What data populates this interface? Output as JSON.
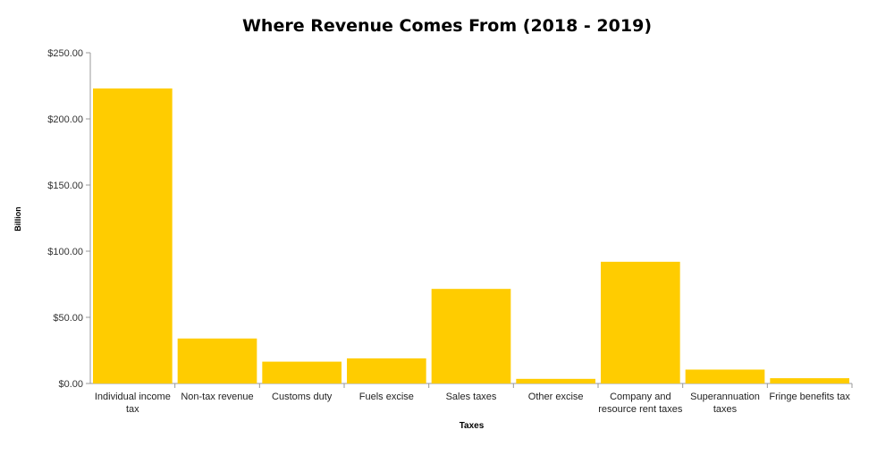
{
  "chart_data": {
    "type": "bar",
    "title": "Where Revenue Comes From (2018 - 2019)",
    "xlabel": "Taxes",
    "ylabel": "Billion",
    "ylim": [
      0,
      250
    ],
    "yticks": [
      "$0.00",
      "$50.00",
      "$100.00",
      "$150.00",
      "$200.00",
      "$250.00"
    ],
    "ytick_values": [
      0,
      50,
      100,
      150,
      200,
      250
    ],
    "categories": [
      "Individual income tax",
      "Non-tax revenue",
      "Customs duty",
      "Fuels excise",
      "Sales taxes",
      "Other excise",
      "Company and resource rent taxes",
      "Superannuation taxes",
      "Fringe benefits tax"
    ],
    "category_lines": [
      [
        "Individual income",
        "tax"
      ],
      [
        "Non-tax revenue"
      ],
      [
        "Customs duty"
      ],
      [
        "Fuels excise"
      ],
      [
        "Sales taxes"
      ],
      [
        "Other excise"
      ],
      [
        "Company and",
        "resource rent taxes"
      ],
      [
        "Superannuation",
        "taxes"
      ],
      [
        "Fringe benefits tax"
      ]
    ],
    "values": [
      223,
      34,
      16.5,
      19,
      71.5,
      3.5,
      92,
      10.5,
      4
    ],
    "grid": false,
    "legend": "none",
    "bar_color": "#FFCC00"
  }
}
